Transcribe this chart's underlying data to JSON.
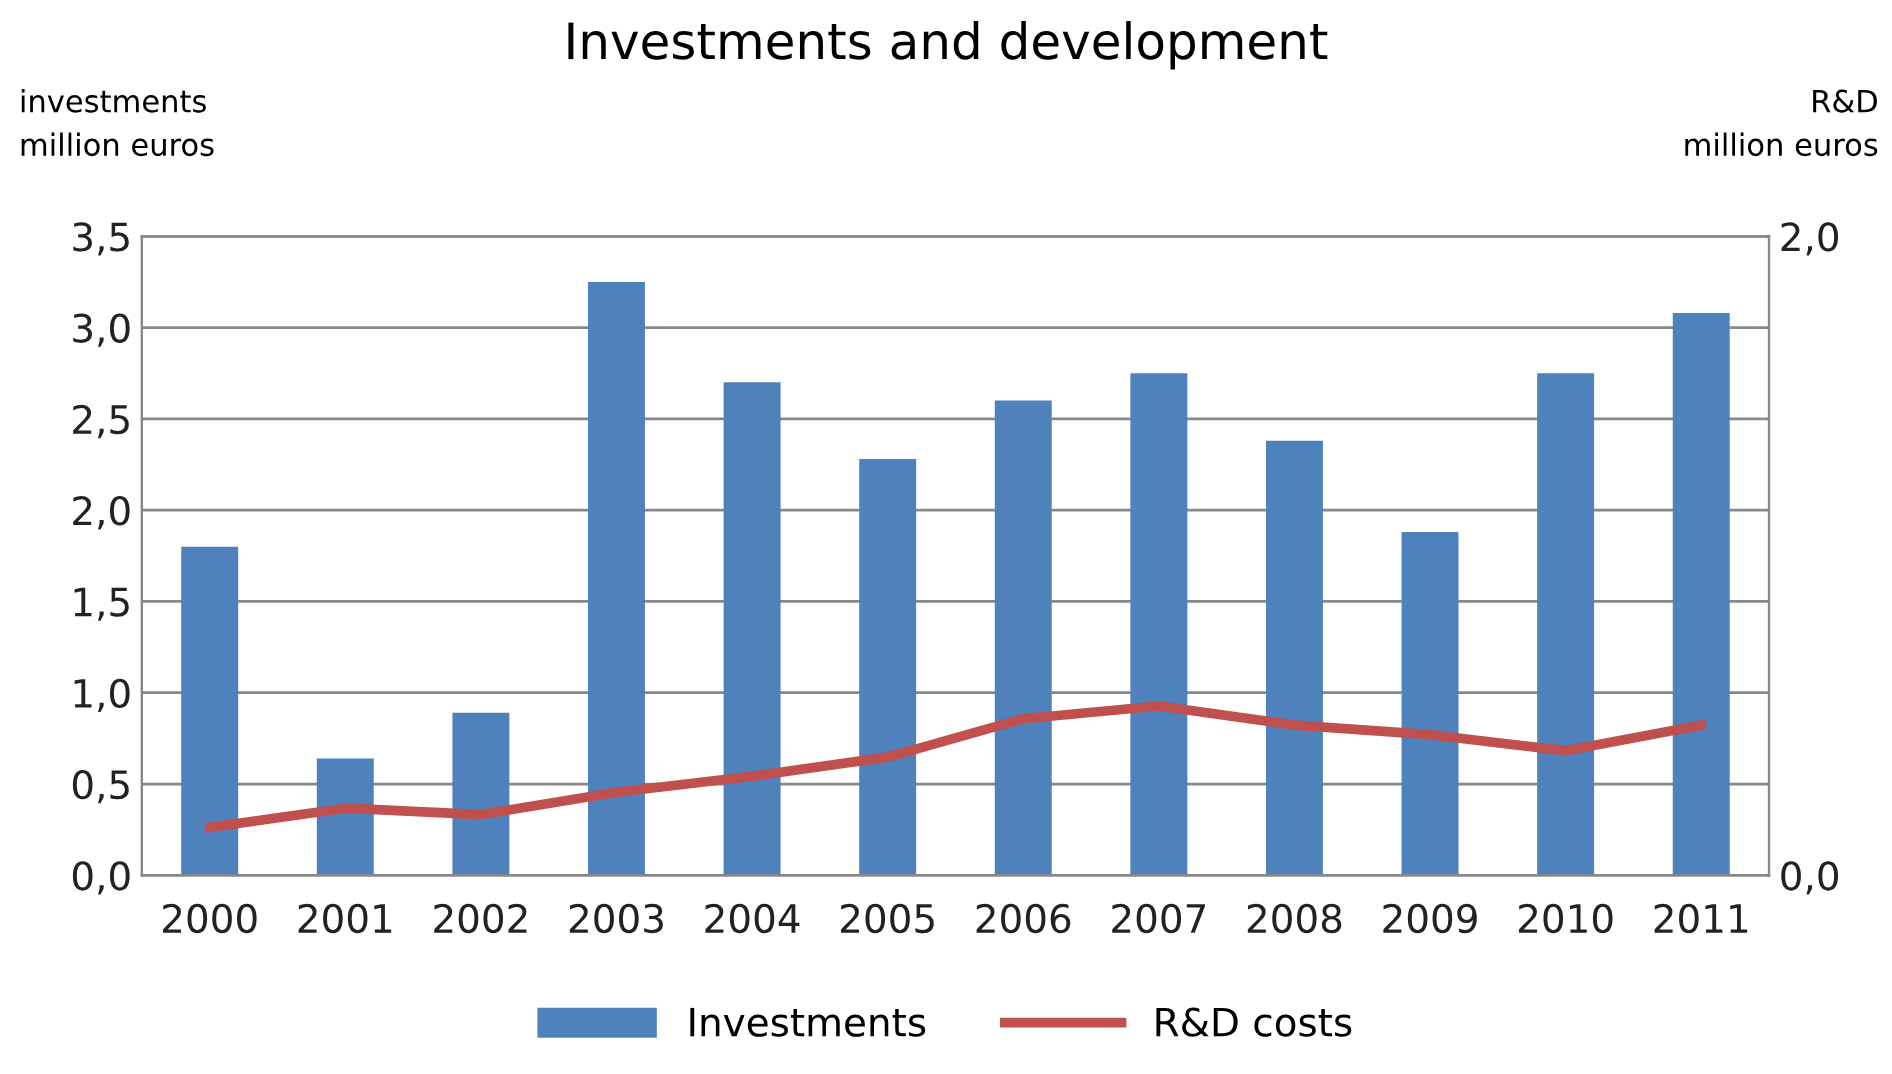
{
  "chart_data": {
    "type": "bar",
    "title": "Investments and development",
    "ylabel": "investments\nmillion euros",
    "y2label": "R&D\nmillion euros",
    "categories": [
      "2000",
      "2001",
      "2002",
      "2003",
      "2004",
      "2005",
      "2006",
      "2007",
      "2008",
      "2009",
      "2010",
      "2011"
    ],
    "series": [
      {
        "name": "Investments",
        "color": "#4f81bd",
        "values": [
          1.8,
          0.64,
          0.89,
          3.25,
          2.7,
          2.28,
          2.6,
          2.75,
          2.38,
          1.88,
          2.75,
          3.08
        ]
      },
      {
        "name": "R&D costs",
        "type": "line",
        "axis": "y2",
        "color": "#c0504d",
        "values": [
          0.15,
          0.21,
          0.19,
          0.26,
          0.31,
          0.37,
          0.49,
          0.53,
          0.47,
          0.44,
          0.39,
          0.47
        ]
      }
    ],
    "ylim": [
      0,
      3.5
    ],
    "yticks": [
      {
        "value": 0,
        "label": "0,0"
      },
      {
        "value": 0.5,
        "label": "0,5"
      },
      {
        "value": 1,
        "label": "1,0"
      },
      {
        "value": 1.5,
        "label": "1,5"
      },
      {
        "value": 2,
        "label": "2,0"
      },
      {
        "value": 2.5,
        "label": "2,5"
      },
      {
        "value": 3,
        "label": "3,0"
      },
      {
        "value": 3.5,
        "label": "3,5"
      }
    ],
    "y2lim": [
      0,
      2
    ],
    "y2ticks": [
      {
        "value": 0,
        "label": "0,0"
      },
      {
        "value": 2,
        "label": "2,0"
      }
    ],
    "grid": "y",
    "legend": "bottom",
    "marker": "none",
    "line_style": "solid"
  }
}
